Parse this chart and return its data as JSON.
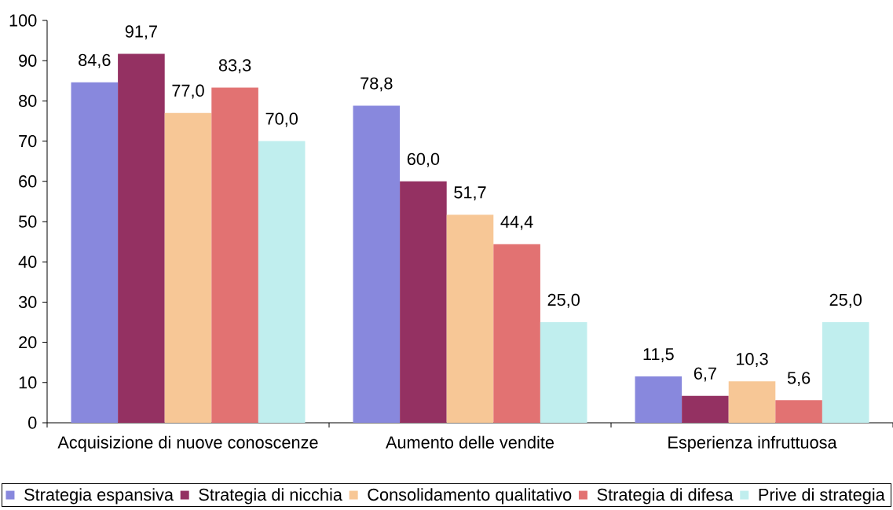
{
  "chart_data": {
    "type": "bar",
    "categories": [
      "Acquisizione di nuove conoscenze",
      "Aumento delle vendite",
      "Esperienza infruttuosa"
    ],
    "series": [
      {
        "name": "Strategia espansiva",
        "color": "#8888dd",
        "values": [
          84.6,
          78.8,
          11.5
        ],
        "value_labels": [
          "84,6",
          "78,8",
          "11,5"
        ]
      },
      {
        "name": "Strategia di nicchia",
        "color": "#943162",
        "values": [
          91.7,
          60.0,
          6.7
        ],
        "value_labels": [
          "91,7",
          "60,0",
          "6,7"
        ]
      },
      {
        "name": "Consolidamento qualitativo",
        "color": "#f7c796",
        "values": [
          77.0,
          51.7,
          10.3
        ],
        "value_labels": [
          "77,0",
          "51,7",
          "10,3"
        ]
      },
      {
        "name": "Strategia di difesa",
        "color": "#e27272",
        "values": [
          83.3,
          44.4,
          5.6
        ],
        "value_labels": [
          "83,3",
          "44,4",
          "5,6"
        ]
      },
      {
        "name": "Prive di strategia",
        "color": "#c0eeee",
        "values": [
          70.0,
          25.0,
          25.0
        ],
        "value_labels": [
          "70,0",
          "25,0",
          "25,0"
        ]
      }
    ],
    "ylim": [
      0,
      100
    ],
    "yticks": [
      0,
      10,
      20,
      30,
      40,
      50,
      60,
      70,
      80,
      90,
      100
    ],
    "legend": "bottom"
  }
}
